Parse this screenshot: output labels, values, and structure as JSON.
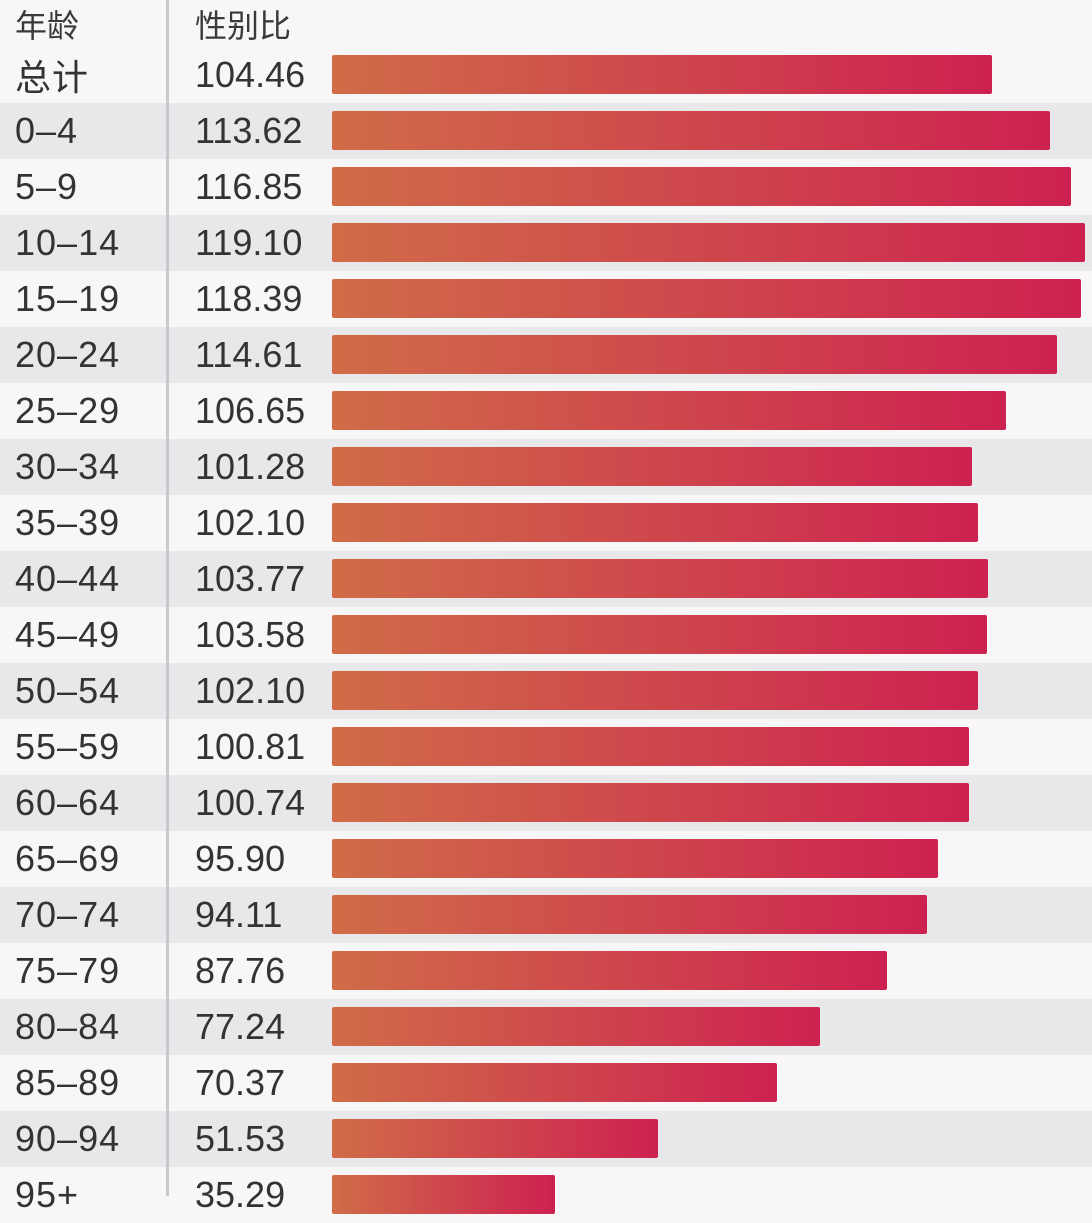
{
  "chart_data": {
    "type": "bar",
    "orientation": "horizontal",
    "title": "",
    "column_headers": {
      "age": "年龄",
      "ratio": "性别比"
    },
    "xlabel": "性别比",
    "ylabel": "年龄",
    "categories": [
      "总计",
      "0–4",
      "5–9",
      "10–14",
      "15–19",
      "20–24",
      "25–29",
      "30–34",
      "35–39",
      "40–44",
      "45–49",
      "50–54",
      "55–59",
      "60–64",
      "65–69",
      "70–74",
      "75–79",
      "80–84",
      "85–89",
      "90–94",
      "95+"
    ],
    "values": [
      104.46,
      113.62,
      116.85,
      119.1,
      118.39,
      114.61,
      106.65,
      101.28,
      102.1,
      103.77,
      103.58,
      102.1,
      100.81,
      100.74,
      95.9,
      94.11,
      87.76,
      77.24,
      70.37,
      51.53,
      35.29
    ],
    "value_labels": [
      "104.46",
      "113.62",
      "116.85",
      "119.10",
      "118.39",
      "114.61",
      "106.65",
      "101.28",
      "102.10",
      "103.77",
      "103.58",
      "102.10",
      "100.81",
      "100.74",
      "95.90",
      "94.11",
      "87.76",
      "77.24",
      "70.37",
      "51.53",
      "35.29"
    ],
    "xlim": [
      0,
      119.1
    ],
    "grid": "off",
    "legend": "none",
    "bar_gradient_start": "#d06c48",
    "bar_gradient_end": "#cd2150",
    "stripe_color": "#e8e7e9",
    "background_color": "#f8f6f7",
    "divider_color": "#c9c8cc"
  }
}
